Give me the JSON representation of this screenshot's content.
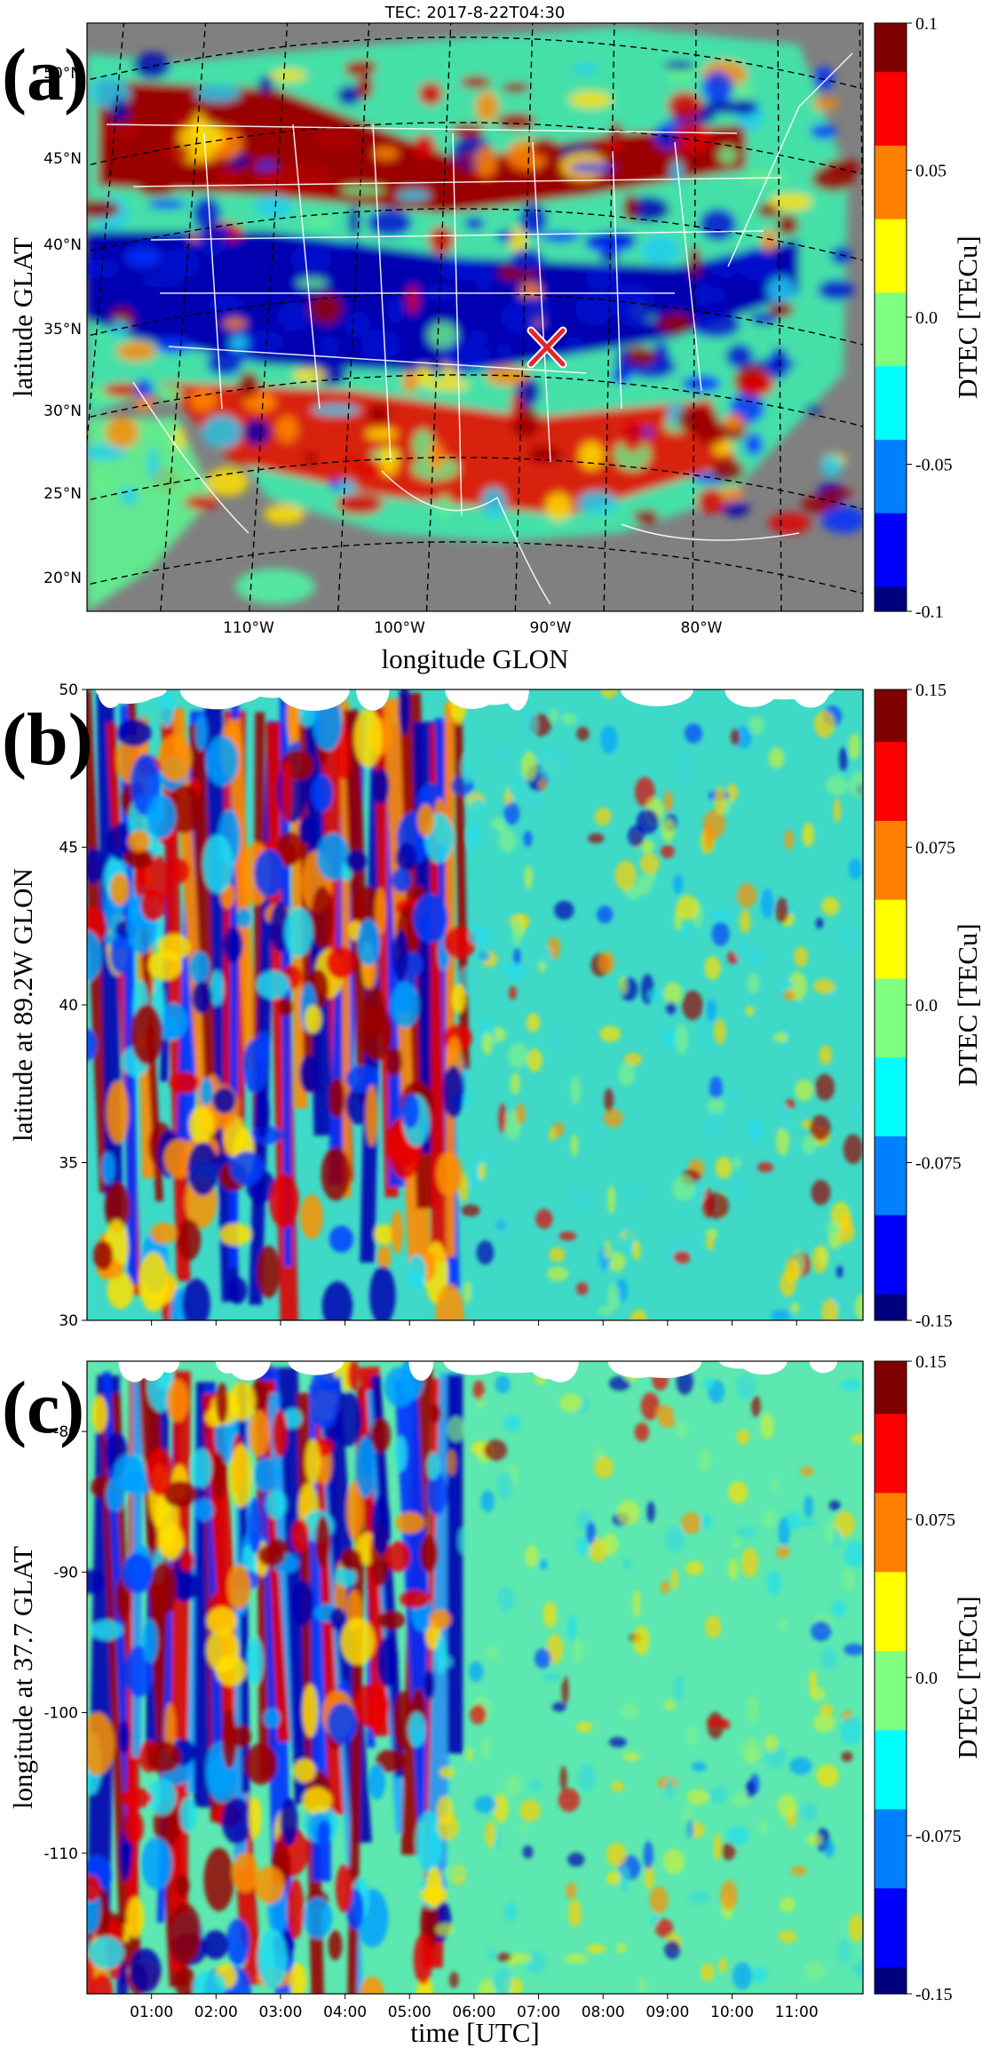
{
  "colors": {
    "jet": [
      "#00007f",
      "#0000ff",
      "#007fff",
      "#00ffff",
      "#7fff7f",
      "#ffff00",
      "#ff7f00",
      "#ff0000",
      "#7f0000"
    ],
    "land_gray": "#808080",
    "marker": "#e0282c"
  },
  "icons": {
    "marker": "x-mark-icon"
  },
  "chart_data": [
    {
      "panel": "(a)",
      "type": "heatmap",
      "subtype": "map",
      "title": "TEC: 2017-8-22T04:30",
      "xlabel": "longitude GLON",
      "ylabel": "latitude GLAT",
      "x_ticks": [
        "110°W",
        "100°W",
        "90°W",
        "80°W"
      ],
      "y_ticks": [
        "20°N",
        "25°N",
        "30°N",
        "35°N",
        "40°N",
        "45°N",
        "50°N"
      ],
      "marker": {
        "lon": -89.2,
        "lat": 37.7,
        "symbol": "x"
      },
      "colorbar": {
        "label": "DTEC [TECu]",
        "range": [
          -0.1,
          0.1
        ],
        "ticks": [
          "0.1",
          "0.05",
          "0.0",
          "-0.05",
          "-0.1"
        ]
      }
    },
    {
      "panel": "(b)",
      "type": "heatmap",
      "xlabel": "",
      "ylabel": "latitude at 89.2W GLON",
      "ylim": [
        30,
        50
      ],
      "y_ticks": [
        "50",
        "45",
        "40",
        "35",
        "30"
      ],
      "colorbar": {
        "label": "DTEC [TECu]",
        "range": [
          -0.15,
          0.15
        ],
        "ticks": [
          "0.15",
          "0.075",
          "0.0",
          "-0.075",
          "-0.15"
        ]
      }
    },
    {
      "panel": "(c)",
      "type": "heatmap",
      "xlabel": "time [UTC]",
      "ylabel": "longitude at 37.7 GLAT",
      "ylim": [
        -120,
        -75
      ],
      "y_ticks": [
        "-80",
        "-90",
        "-100",
        "-110"
      ],
      "x_ticks": [
        "01:00",
        "02:00",
        "03:00",
        "04:00",
        "05:00",
        "06:00",
        "07:00",
        "08:00",
        "09:00",
        "10:00",
        "11:00"
      ],
      "colorbar": {
        "label": "DTEC [TECu]",
        "range": [
          -0.15,
          0.15
        ],
        "ticks": [
          "0.15",
          "0.075",
          "0.0",
          "-0.075",
          "-0.15"
        ]
      }
    }
  ]
}
